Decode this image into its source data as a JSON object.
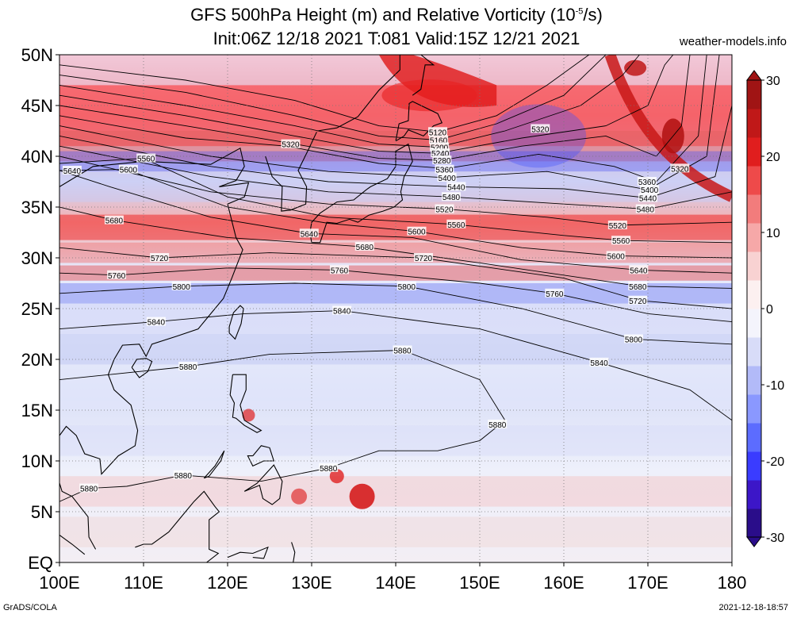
{
  "header": {
    "title_line1": "GFS 500hPa Height (m) and Relative Vorticity (10",
    "title_exp": "-5",
    "title_line1_tail": "/s)",
    "title_line2": "Init:06Z 12/18 2021 T:081 Valid:15Z 12/21 2021",
    "site": "weather-models.info"
  },
  "footer": {
    "credit": "GrADS/COLA",
    "timestamp": "2021-12-18-18:57"
  },
  "map": {
    "lat_labels": [
      "EQ",
      "5N",
      "10N",
      "15N",
      "20N",
      "25N",
      "30N",
      "35N",
      "40N",
      "45N",
      "50N"
    ],
    "lon_labels": [
      "100E",
      "110E",
      "120E",
      "130E",
      "140E",
      "150E",
      "160E",
      "170E",
      "180"
    ],
    "lat_values": [
      0,
      5,
      10,
      15,
      20,
      25,
      30,
      35,
      40,
      45,
      50
    ],
    "lon_values": [
      100,
      110,
      120,
      130,
      140,
      150,
      160,
      170,
      180
    ],
    "contour_labels": [
      {
        "text": "5120",
        "lon": 145,
        "lat": 42.4
      },
      {
        "text": "5160",
        "lon": 145.1,
        "lat": 41.6
      },
      {
        "text": "5200",
        "lon": 145.2,
        "lat": 40.9
      },
      {
        "text": "5240",
        "lon": 145.3,
        "lat": 40.3
      },
      {
        "text": "5280",
        "lon": 145.5,
        "lat": 39.6
      },
      {
        "text": "5320",
        "lon": 127.5,
        "lat": 41.2
      },
      {
        "text": "5320",
        "lon": 157.2,
        "lat": 42.7
      },
      {
        "text": "5320",
        "lon": 173.8,
        "lat": 38.8
      },
      {
        "text": "5360",
        "lon": 145.8,
        "lat": 38.7
      },
      {
        "text": "5360",
        "lon": 169.9,
        "lat": 37.5
      },
      {
        "text": "5400",
        "lon": 146.1,
        "lat": 37.9
      },
      {
        "text": "5400",
        "lon": 170.2,
        "lat": 36.7
      },
      {
        "text": "5440",
        "lon": 147.2,
        "lat": 37.0
      },
      {
        "text": "5440",
        "lon": 170.0,
        "lat": 35.9
      },
      {
        "text": "5480",
        "lon": 146.6,
        "lat": 36.0
      },
      {
        "text": "5480",
        "lon": 169.7,
        "lat": 34.8
      },
      {
        "text": "5520",
        "lon": 145.8,
        "lat": 34.8
      },
      {
        "text": "5520",
        "lon": 166.4,
        "lat": 33.2
      },
      {
        "text": "5560",
        "lon": 110.3,
        "lat": 39.8
      },
      {
        "text": "5560",
        "lon": 147.2,
        "lat": 33.3
      },
      {
        "text": "5560",
        "lon": 166.8,
        "lat": 31.7
      },
      {
        "text": "5600",
        "lon": 108.2,
        "lat": 38.7
      },
      {
        "text": "5600",
        "lon": 142.5,
        "lat": 32.6
      },
      {
        "text": "5600",
        "lon": 166.2,
        "lat": 30.2
      },
      {
        "text": "5640",
        "lon": 101.5,
        "lat": 38.6
      },
      {
        "text": "5640",
        "lon": 129.7,
        "lat": 32.4
      },
      {
        "text": "5640",
        "lon": 168.9,
        "lat": 28.8
      },
      {
        "text": "5680",
        "lon": 106.5,
        "lat": 33.7
      },
      {
        "text": "5680",
        "lon": 136.3,
        "lat": 31.1
      },
      {
        "text": "5680",
        "lon": 168.8,
        "lat": 27.2
      },
      {
        "text": "5720",
        "lon": 111.9,
        "lat": 30.0
      },
      {
        "text": "5720",
        "lon": 143.3,
        "lat": 30.0
      },
      {
        "text": "5720",
        "lon": 168.8,
        "lat": 25.8
      },
      {
        "text": "5760",
        "lon": 106.8,
        "lat": 28.3
      },
      {
        "text": "5760",
        "lon": 133.3,
        "lat": 28.8
      },
      {
        "text": "5760",
        "lon": 158.9,
        "lat": 26.5
      },
      {
        "text": "5800",
        "lon": 114.5,
        "lat": 27.2
      },
      {
        "text": "5800",
        "lon": 141.3,
        "lat": 27.2
      },
      {
        "text": "5800",
        "lon": 168.3,
        "lat": 22.0
      },
      {
        "text": "5840",
        "lon": 111.5,
        "lat": 23.7
      },
      {
        "text": "5840",
        "lon": 133.6,
        "lat": 24.8
      },
      {
        "text": "5840",
        "lon": 164.2,
        "lat": 19.7
      },
      {
        "text": "5880",
        "lon": 140.8,
        "lat": 20.9
      },
      {
        "text": "5880",
        "lon": 115.3,
        "lat": 19.3
      },
      {
        "text": "5880",
        "lon": 152.1,
        "lat": 13.6
      },
      {
        "text": "5880",
        "lon": 132.0,
        "lat": 9.3
      },
      {
        "text": "5880",
        "lon": 114.7,
        "lat": 8.6
      },
      {
        "text": "5880",
        "lon": 103.5,
        "lat": 7.3
      }
    ]
  },
  "colorbar": {
    "tick_labels": [
      "30",
      "20",
      "10",
      "0",
      "-10",
      "-20",
      "-30"
    ],
    "tick_values": [
      30,
      20,
      10,
      0,
      -10,
      -20,
      -30
    ],
    "colors": [
      "#2a0d8a",
      "#3c16c8",
      "#3a3cff",
      "#5c6cff",
      "#8a98ff",
      "#b2baf8",
      "#d8dcf8",
      "#f4f4fc",
      "#fcf0f0",
      "#f8d2d2",
      "#f6a8a8",
      "#f27c7c",
      "#ee4a4a",
      "#e01e1e",
      "#c01818",
      "#a01414"
    ]
  }
}
